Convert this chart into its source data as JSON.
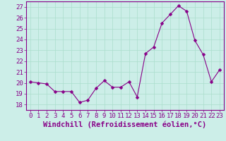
{
  "x": [
    0,
    1,
    2,
    3,
    4,
    5,
    6,
    7,
    8,
    9,
    10,
    11,
    12,
    13,
    14,
    15,
    16,
    17,
    18,
    19,
    20,
    21,
    22,
    23
  ],
  "y": [
    20.1,
    20.0,
    19.9,
    19.2,
    19.2,
    19.2,
    18.2,
    18.4,
    19.5,
    20.2,
    19.6,
    19.6,
    20.1,
    18.7,
    22.7,
    23.3,
    25.5,
    26.3,
    27.1,
    26.6,
    23.9,
    22.6,
    20.1,
    21.2
  ],
  "line_color": "#880088",
  "marker": "D",
  "marker_size": 2.5,
  "bg_color": "#cceee8",
  "grid_color": "#aaddcc",
  "xlabel": "Windchill (Refroidissement éolien,°C)",
  "ylim": [
    17.5,
    27.5
  ],
  "xlim": [
    -0.5,
    23.5
  ],
  "yticks": [
    18,
    19,
    20,
    21,
    22,
    23,
    24,
    25,
    26,
    27
  ],
  "xticks": [
    0,
    1,
    2,
    3,
    4,
    5,
    6,
    7,
    8,
    9,
    10,
    11,
    12,
    13,
    14,
    15,
    16,
    17,
    18,
    19,
    20,
    21,
    22,
    23
  ],
  "tick_color": "#880088",
  "label_color": "#880088",
  "font_size": 6.5,
  "xlabel_fontsize": 7.5
}
